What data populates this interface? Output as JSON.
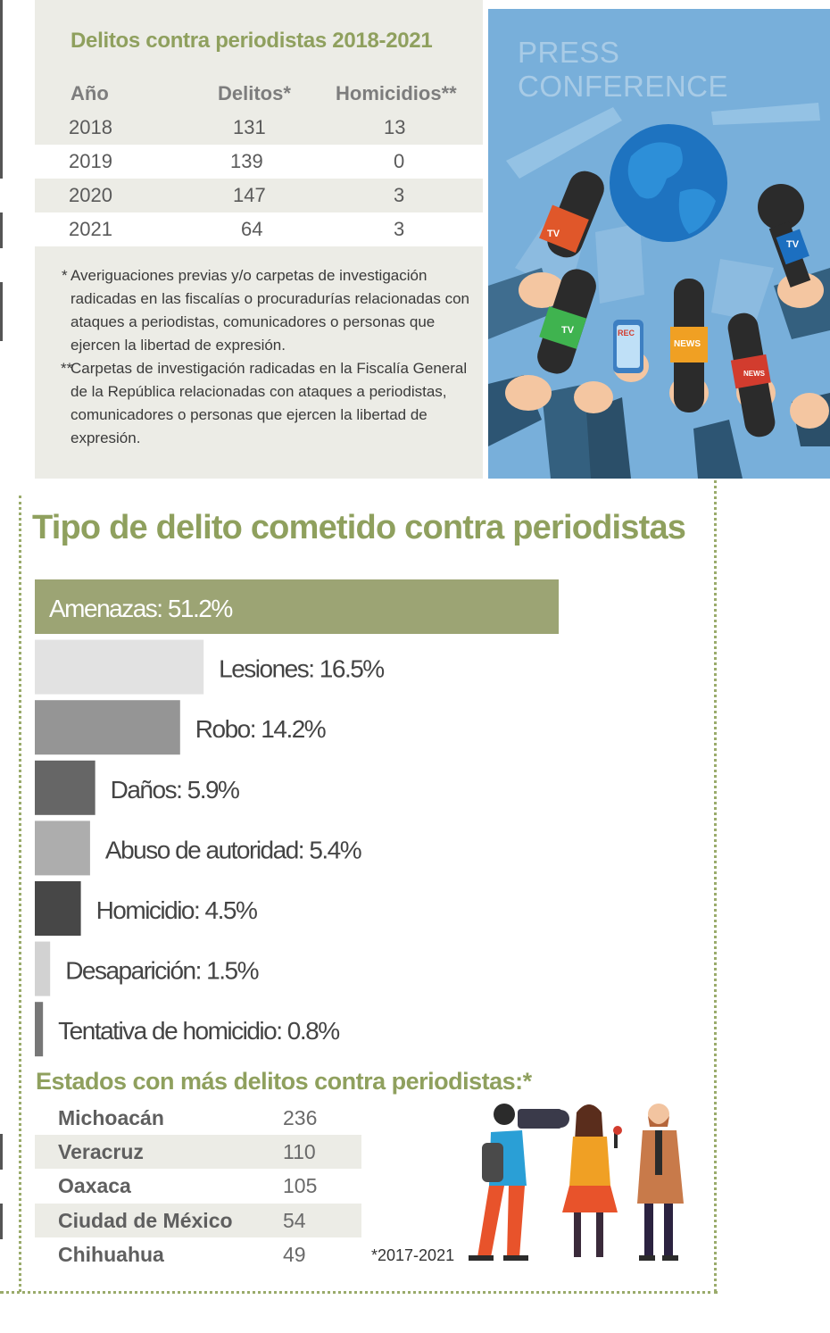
{
  "crimes_table": {
    "title": "Delitos contra periodistas 2018-2021",
    "headers": [
      "Año",
      "Delitos*",
      "Homicidios**"
    ],
    "rows": [
      {
        "year": "2018",
        "delitos": "131",
        "homicidios": "13"
      },
      {
        "year": "2019",
        "delitos": "139",
        "homicidios": "0"
      },
      {
        "year": "2020",
        "delitos": "147",
        "homicidios": "3"
      },
      {
        "year": "2021",
        "delitos": "64",
        "homicidios": "3"
      }
    ],
    "notes": [
      {
        "mark": "*",
        "text": "Averiguaciones previas y/o carpetas de investigación radicadas en las fiscalías o procuradurías relacionadas con ataques a periodistas, comunicadores o personas que ejercen la libertad de expresión."
      },
      {
        "mark": "**",
        "text": "Carpetas de investigación radicadas en la Fiscalía General de la República relacionadas con ataques a periodistas, comunicadores o personas que ejercen la libertad de expresión."
      }
    ]
  },
  "illustration": {
    "heading": "PRESS CONFERENCE",
    "mic_labels": [
      "TV",
      "TV",
      "REC",
      "NEWS",
      "NEWS",
      "TV"
    ]
  },
  "chart_data": {
    "type": "bar",
    "orientation": "horizontal",
    "title": "Tipo de delito cometido contra periodistas",
    "unit": "%",
    "categories": [
      "Amenazas",
      "Lesiones",
      "Robo",
      "Daños",
      "Abuso de autoridad",
      "Homicidio",
      "Desaparición",
      "Tentativa de homicidio"
    ],
    "values": [
      51.2,
      16.5,
      14.2,
      5.9,
      5.4,
      4.5,
      1.5,
      0.8
    ],
    "labels": [
      "Amenazas: 51.2%",
      "Lesiones: 16.5%",
      "Robo: 14.2%",
      "Daños: 5.9%",
      "Abuso de autoridad: 5.4%",
      "Homicidio: 4.5%",
      "Desaparición: 1.5%",
      "Tentativa de homicidio: 0.8%"
    ],
    "colors": [
      "#9ca474",
      "#e2e2e2",
      "#959595",
      "#666666",
      "#adadad",
      "#474747",
      "#d2d2d2",
      "#777777"
    ],
    "label_colors": [
      "#ffffff",
      "#444444",
      "#444444",
      "#444444",
      "#444444",
      "#444444",
      "#444444",
      "#444444"
    ],
    "xlim": [
      0,
      51.2
    ],
    "grid": false,
    "legend": "none"
  },
  "states": {
    "title": "Estados con más delitos contra periodistas:*",
    "rows": [
      {
        "name": "Michoacán",
        "value": "236"
      },
      {
        "name": "Veracruz",
        "value": "110"
      },
      {
        "name": "Oaxaca",
        "value": "105"
      },
      {
        "name": "Ciudad de México",
        "value": "54"
      },
      {
        "name": "Chihuahua",
        "value": "49"
      }
    ],
    "note": "*2017-2021"
  },
  "colors": {
    "accent_green": "#8fa05e",
    "panel_gray": "#ecece6",
    "illustration_blue": "#78afda"
  }
}
